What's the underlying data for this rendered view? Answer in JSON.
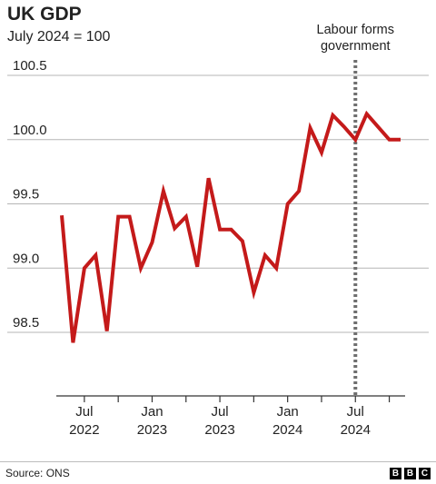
{
  "header": {
    "title": "UK GDP",
    "subtitle": "July 2024 = 100"
  },
  "footer": {
    "source": "Source: ONS",
    "logo": [
      "B",
      "B",
      "C"
    ]
  },
  "colors": {
    "line": "#c41a1a",
    "grid": "#b5b5b5",
    "marker_line": "#6e6e6e",
    "text": "#222222"
  },
  "chart_data": {
    "type": "line",
    "title": "UK GDP",
    "subtitle": "July 2024 = 100",
    "xlabel": "",
    "ylabel": "",
    "ylim": [
      98.0,
      100.75
    ],
    "grid": true,
    "y_ticks": [
      100.5,
      100.0,
      99.5,
      99.0,
      98.5
    ],
    "y_tick_labels": [
      "100.5",
      "100.0",
      "99.5",
      "99.0",
      "98.5"
    ],
    "x": [
      "2022-05",
      "2022-06",
      "2022-07",
      "2022-08",
      "2022-09",
      "2022-10",
      "2022-11",
      "2022-12",
      "2023-01",
      "2023-02",
      "2023-03",
      "2023-04",
      "2023-05",
      "2023-06",
      "2023-07",
      "2023-08",
      "2023-09",
      "2023-10",
      "2023-11",
      "2023-12",
      "2024-01",
      "2024-02",
      "2024-03",
      "2024-04",
      "2024-05",
      "2024-06",
      "2024-07",
      "2024-08",
      "2024-09",
      "2024-10",
      "2024-11"
    ],
    "series": [
      {
        "values": [
          99.41,
          98.42,
          99.0,
          99.1,
          98.51,
          99.4,
          99.4,
          99.0,
          99.2,
          99.6,
          99.31,
          99.4,
          99.01,
          99.7,
          99.3,
          99.3,
          99.21,
          98.81,
          99.1,
          99.0,
          99.5,
          99.6,
          100.09,
          99.9,
          100.19,
          100.1,
          100.0,
          100.2,
          100.1,
          100.0,
          100.0
        ]
      }
    ],
    "x_tick_positions": [
      "2022-07",
      "2023-01",
      "2023-07",
      "2024-01",
      "2024-07"
    ],
    "x_tick_labels": [
      {
        "month": "Jul",
        "year": "2022"
      },
      {
        "month": "Jan",
        "year": "2023"
      },
      {
        "month": "Jul",
        "year": "2023"
      },
      {
        "month": "Jan",
        "year": "2024"
      },
      {
        "month": "Jul",
        "year": "2024"
      }
    ],
    "annotations": [
      {
        "x": "2024-07",
        "lines": [
          "Labour forms",
          "government"
        ]
      }
    ]
  }
}
